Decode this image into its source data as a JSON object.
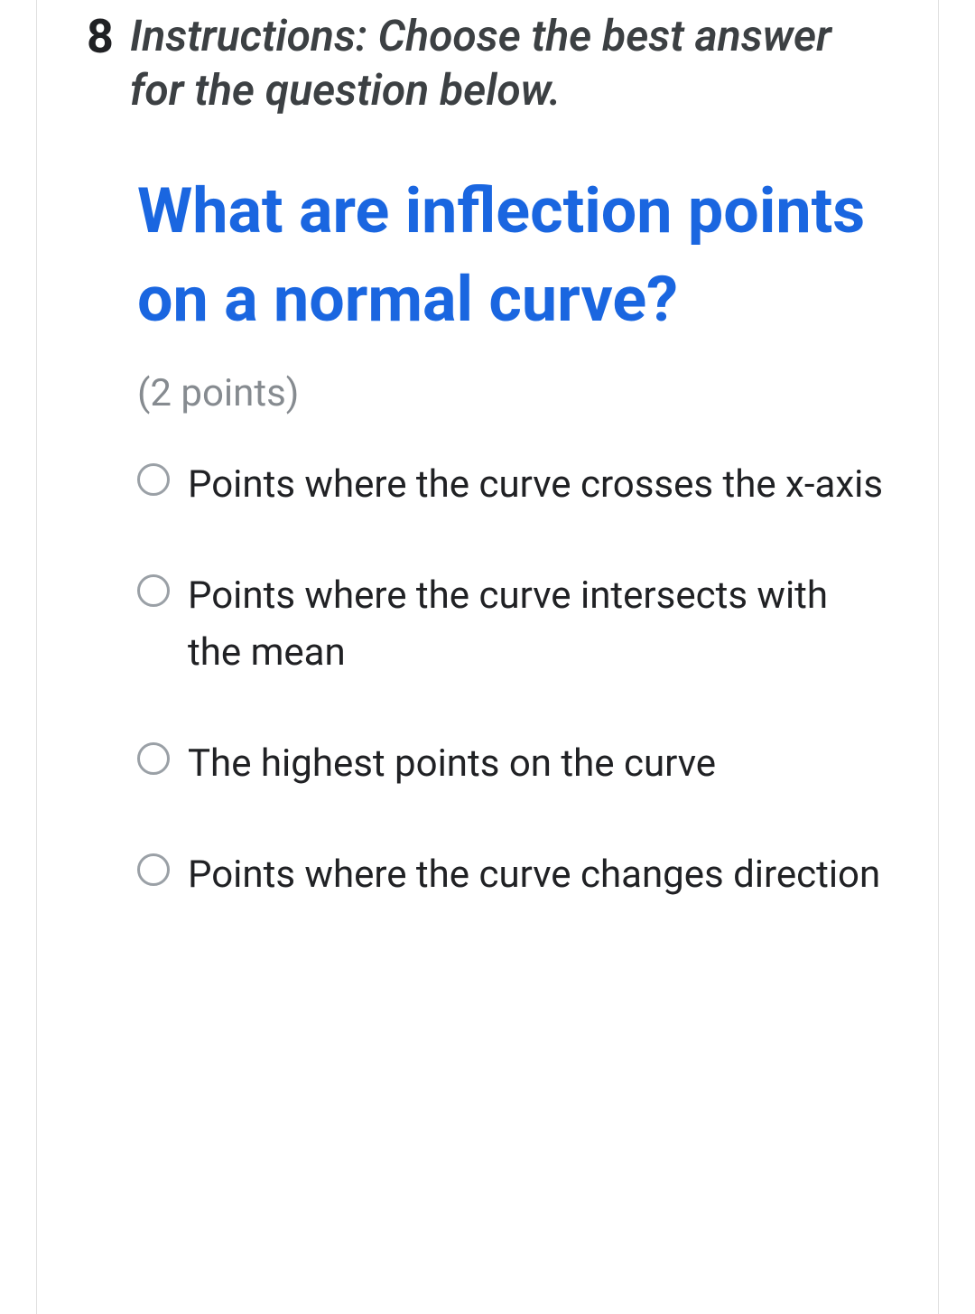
{
  "question": {
    "number": "8",
    "instructions": "Instructions: Choose the best answer for the question below.",
    "title": "What are inflection points on a normal curve?",
    "points": "(2 points)",
    "options": [
      "Points where the curve crosses the x-axis",
      "Points where the curve intersects with the mean",
      "The highest points on the curve",
      "Points where the curve changes direction"
    ]
  },
  "colors": {
    "title_color": "#1a66e0",
    "text_color": "#202124",
    "muted_color": "#868b90",
    "radio_border": "#9aa0a6",
    "card_border": "#e0e0e0",
    "background": "#ffffff"
  },
  "typography": {
    "number_fontsize": 52,
    "instructions_fontsize": 48,
    "title_fontsize": 70,
    "points_fontsize": 42,
    "option_fontsize": 42
  }
}
